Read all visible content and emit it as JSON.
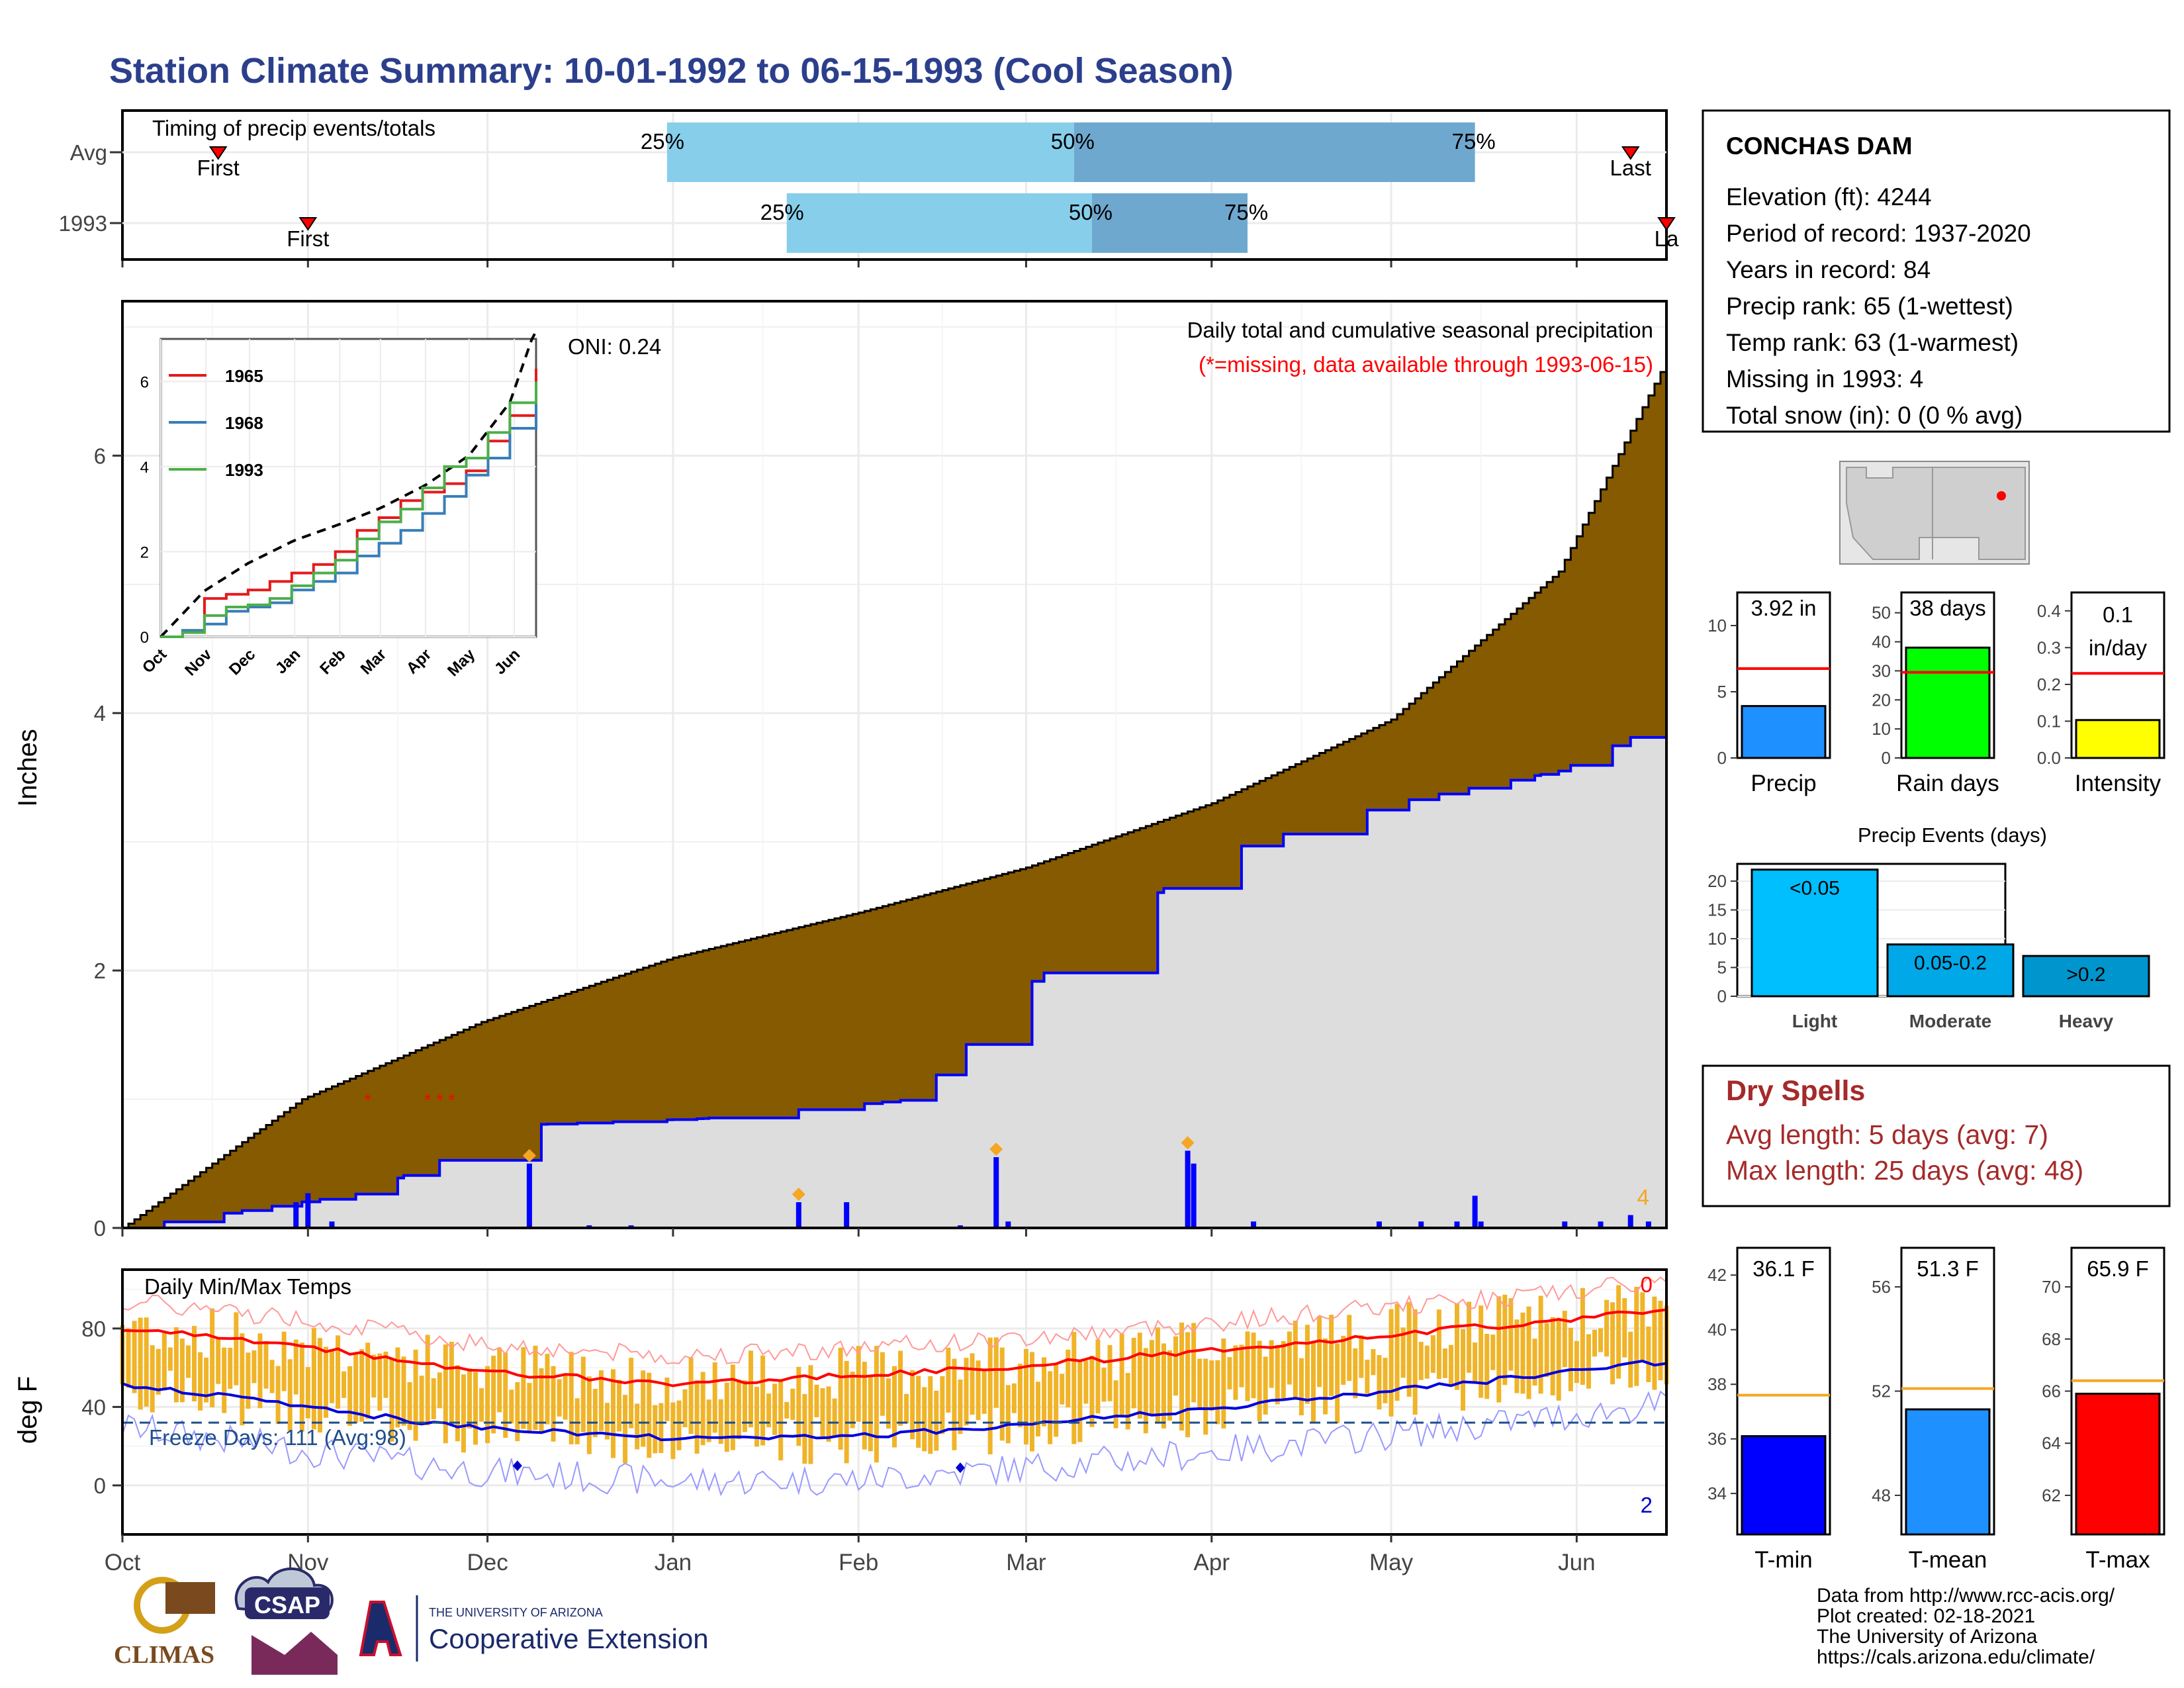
{
  "title": "Station Climate Summary: 10-01-1992 to 06-15-1993 (Cool Season)",
  "months": [
    "Oct",
    "Nov",
    "Dec",
    "Jan",
    "Feb",
    "Mar",
    "Apr",
    "May",
    "Jun"
  ],
  "timing": {
    "label": "Timing of precip events/totals",
    "rows": [
      {
        "label": "Avg",
        "first_day": 16,
        "last_day": 252,
        "p25_day": 91,
        "p50_day": 159,
        "p75_day": 226,
        "last_text": "Last"
      },
      {
        "label": "1993",
        "first_day": 31,
        "last_day": 258,
        "p25_day": 111,
        "p50_day": 162,
        "p75_day": 188,
        "last_text": "La"
      }
    ],
    "first_text": "First",
    "p25_text": "25%",
    "p50_text": "50%",
    "p75_text": "75%"
  },
  "station": {
    "name": "CONCHAS DAM",
    "lines": [
      "Elevation (ft): 4244",
      "Period of record: 1937-2020",
      "Years in record: 84",
      "Precip rank: 65 (1-wettest)",
      "Temp rank: 63 (1-warmest)",
      "Missing in 1993: 4",
      "Total snow (in): 0 (0 % avg)"
    ]
  },
  "precip_panel": {
    "ylabel": "Inches",
    "title": "Daily total and cumulative seasonal precipitation",
    "subtitle": "(*=missing, data available through 1993-06-15)",
    "oni": "ONI: 0.24",
    "count_label": "4"
  },
  "inset": {
    "legend": [
      "1965",
      "1968",
      "1993"
    ],
    "colors": [
      "#e41a1c",
      "#377eb8",
      "#4daf4a"
    ],
    "yticks": [
      "0",
      "2",
      "4",
      "6"
    ]
  },
  "summary_bars": [
    {
      "label": "Precip",
      "value_text": "3.92 in",
      "value": 3.92,
      "avg": 6.75,
      "ymax": 12.5,
      "ticks": [
        "0",
        "5",
        "10"
      ],
      "tickvals": [
        0,
        5,
        10
      ],
      "color": "#1e90ff"
    },
    {
      "label": "Rain days",
      "value_text": "38 days",
      "value": 38,
      "avg": 29.5,
      "ymax": 57,
      "ticks": [
        "0",
        "10",
        "20",
        "30",
        "40",
        "50"
      ],
      "tickvals": [
        0,
        10,
        20,
        30,
        40,
        50
      ],
      "color": "#00ff00"
    },
    {
      "label": "Intensity",
      "value_text": "0.1 in/day",
      "value_text_1": "0.1",
      "value_text_2": "in/day",
      "value": 0.103,
      "avg": 0.23,
      "ymax": 0.45,
      "ticks": [
        "0.0",
        "0.1",
        "0.2",
        "0.3",
        "0.4"
      ],
      "tickvals": [
        0,
        0.1,
        0.2,
        0.3,
        0.4
      ],
      "color": "#ffff00"
    }
  ],
  "precip_events": {
    "title": "Precip Events (days)",
    "categories": [
      "Light",
      "Moderate",
      "Heavy"
    ],
    "bar_labels": [
      "<0.05",
      "0.05-0.2",
      ">0.2"
    ],
    "values": [
      22,
      9,
      7
    ],
    "colors": [
      "#00bfff",
      "#00a8e8",
      "#0095cc"
    ],
    "ticks": [
      "0",
      "5",
      "10",
      "15",
      "20"
    ]
  },
  "dry_spells": {
    "title": "Dry Spells",
    "avg_line": "Avg length: 5 days (avg: 7)",
    "max_line": "Max length: 25 days (avg: 48)"
  },
  "temp_panel": {
    "ylabel": "deg F",
    "title": "Daily Min/Max Temps",
    "freeze": "Freeze Days: 111 (Avg:98)",
    "count_top": "0",
    "count_bottom": "2",
    "yticks": [
      "0",
      "40",
      "80"
    ]
  },
  "temp_bars": [
    {
      "label": "T-min",
      "value_text": "36.1 F",
      "value": 36.1,
      "avg": 37.6,
      "ymin": 32.5,
      "ymax": 43,
      "ticks": [
        "34",
        "36",
        "38",
        "40",
        "42"
      ],
      "tickvals": [
        34,
        36,
        38,
        40,
        42
      ],
      "color": "#0000ff"
    },
    {
      "label": "T-mean",
      "value_text": "51.3 F",
      "value": 51.3,
      "avg": 52.1,
      "ymin": 46.5,
      "ymax": 57.5,
      "ticks": [
        "48",
        "52",
        "56"
      ],
      "tickvals": [
        48,
        52,
        56
      ],
      "color": "#1e90ff"
    },
    {
      "label": "T-max",
      "value_text": "65.9 F",
      "value": 65.9,
      "avg": 66.4,
      "ymin": 60.5,
      "ymax": 71.5,
      "ticks": [
        "62",
        "64",
        "66",
        "68",
        "70"
      ],
      "tickvals": [
        62,
        64,
        66,
        68,
        70
      ],
      "color": "#ff0000"
    }
  ],
  "footer": {
    "lines": [
      "Data from http://www.rcc-acis.org/",
      "Plot created: 02-18-2021",
      "The University of Arizona",
      "https://cals.arizona.edu/climate/"
    ],
    "logo1": "CLIMAS",
    "logo2": "CSAP",
    "logo3_small": "THE UNIVERSITY OF ARIZONA",
    "logo3_big": "Cooperative Extension"
  },
  "chart_data": [
    {
      "type": "area",
      "title": "Daily total and cumulative seasonal precipitation",
      "ylabel": "Inches",
      "x_range": [
        "1992-10-01",
        "1993-06-15"
      ],
      "ylim": [
        0,
        7.2
      ],
      "series": [
        {
          "name": "",
          "x_day": [
            0,
            30,
            60,
            92,
            123,
            151,
            182,
            212,
            240,
            257
          ],
          "values": [
            0,
            1.0,
            1.6,
            2.1,
            2.45,
            2.8,
            3.3,
            3.95,
            5.1,
            6.65
          ]
        },
        {
          "name": "",
          "x_day": [
            0,
            40,
            67,
            97,
            132,
            150,
            182,
            212,
            240,
            257
          ],
          "values": [
            0,
            0.27,
            0.8,
            0.85,
            1.0,
            1.85,
            2.9,
            3.3,
            3.55,
            3.92
          ]
        }
      ]
    },
    {
      "type": "line",
      "title": "Daily Min/Max Temps",
      "ylabel": "deg F",
      "x_range": [
        "1992-10-01",
        "1993-06-15"
      ],
      "ylim": [
        -25,
        110
      ],
      "series": [
        {
          "name": "",
          "x_day": [
            0,
            30,
            60,
            92,
            123,
            151,
            182,
            212,
            240,
            257
          ],
          "values": [
            80,
            71,
            58,
            52,
            56,
            61,
            69,
            77,
            84,
            90
          ]
        },
        {
          "name": "",
          "x_day": [
            0,
            30,
            60,
            92,
            123,
            151,
            182,
            212,
            240,
            257
          ],
          "values": [
            52,
            40,
            29,
            24,
            25,
            31,
            39,
            48,
            57,
            63
          ]
        }
      ]
    }
  ]
}
